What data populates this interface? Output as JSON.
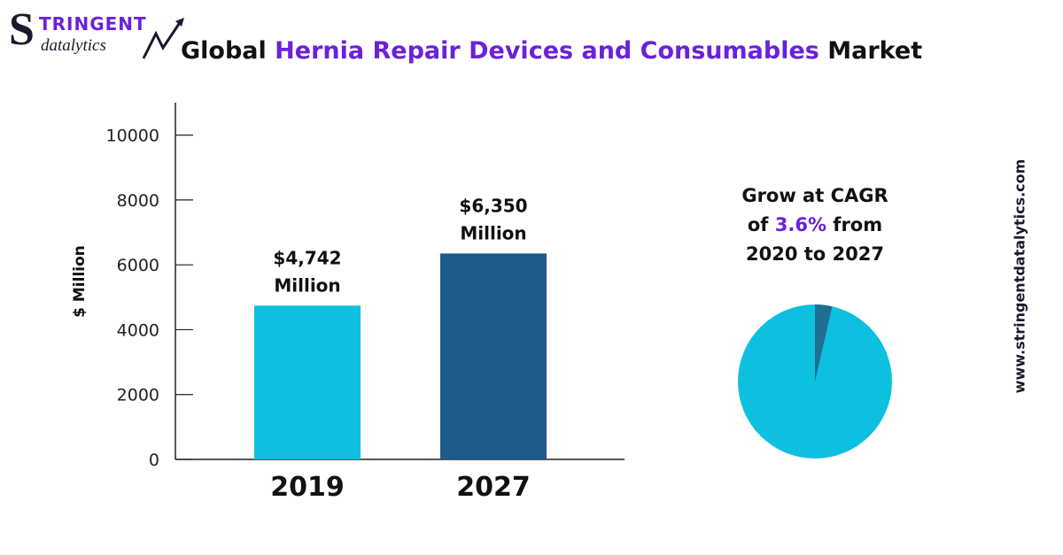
{
  "logo": {
    "initial": "S",
    "top_text": "TRINGENT",
    "bottom_text": "datalytics"
  },
  "title": {
    "prefix": "Global ",
    "highlight": "Hernia Repair Devices and Consumables",
    "suffix": " Market"
  },
  "colors": {
    "accent": "#6b21d9",
    "bar_2019": "#0dc0e0",
    "bar_2027": "#1e5a8a",
    "pie_main": "#0dc0e0",
    "pie_slice": "#1e6f93"
  },
  "chart_data": {
    "type": "bar",
    "categories": [
      "2019",
      "2027"
    ],
    "values": [
      4742,
      6350
    ],
    "value_labels": [
      [
        "$4,742",
        "Million"
      ],
      [
        "$6,350",
        "Million"
      ]
    ],
    "ylabel": "$ Million",
    "yticks": [
      0,
      2000,
      4000,
      6000,
      8000,
      10000
    ],
    "ylim": [
      0,
      11000
    ],
    "grid": false
  },
  "cagr": {
    "line1": "Grow at CAGR",
    "line2_prefix": "of ",
    "rate": "3.6%",
    "line2_suffix": " from",
    "line3": "2020 to 2027",
    "rate_value": 3.6
  },
  "website": "www.stringentdatalytics.com"
}
